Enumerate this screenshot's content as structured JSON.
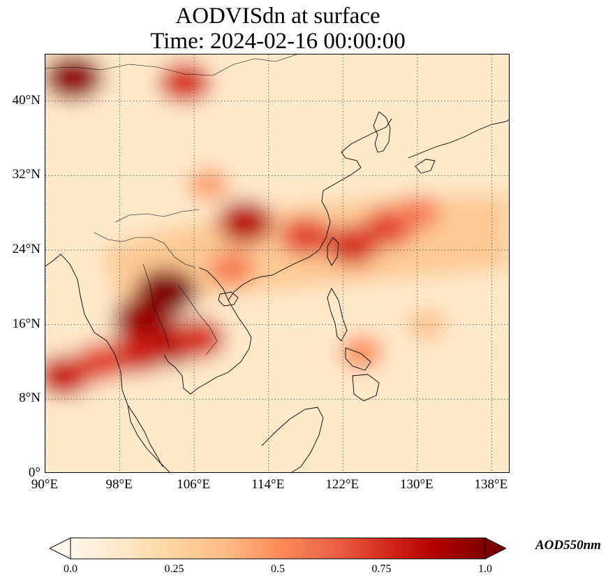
{
  "title": {
    "line1": "AODVISdn at surface",
    "line2": "Time: 2024-02-16 00:00:00"
  },
  "map": {
    "projection": "PlateCarree",
    "extent": {
      "lon_min": 90,
      "lon_max": 140,
      "lat_min": 0,
      "lat_max": 45
    },
    "gridlines": "dotted",
    "coastlines": true,
    "borders": true,
    "lat_ticks": [
      {
        "value": 0,
        "label": "0°"
      },
      {
        "value": 8,
        "label": "8°N"
      },
      {
        "value": 16,
        "label": "16°N"
      },
      {
        "value": 24,
        "label": "24°N"
      },
      {
        "value": 32,
        "label": "32°N"
      },
      {
        "value": 40,
        "label": "40°N"
      }
    ],
    "lon_ticks": [
      {
        "value": 90,
        "label": "90°E"
      },
      {
        "value": 98,
        "label": "98°E"
      },
      {
        "value": 106,
        "label": "106°E"
      },
      {
        "value": 114,
        "label": "114°E"
      },
      {
        "value": 122,
        "label": "122°E"
      },
      {
        "value": 130,
        "label": "130°E"
      },
      {
        "value": 138,
        "label": "138°E"
      }
    ],
    "field_hotspots": [
      {
        "lon": 103.0,
        "lat": 19.5,
        "value": 1.0
      },
      {
        "lon": 100.5,
        "lat": 16.5,
        "value": 0.95
      },
      {
        "lon": 103.5,
        "lat": 14.0,
        "value": 0.9
      },
      {
        "lon": 100.0,
        "lat": 13.0,
        "value": 0.8
      },
      {
        "lon": 92.0,
        "lat": 10.5,
        "value": 0.8
      },
      {
        "lon": 96.0,
        "lat": 12.0,
        "value": 0.7
      },
      {
        "lon": 106.5,
        "lat": 14.5,
        "value": 0.75
      },
      {
        "lon": 111.5,
        "lat": 27.0,
        "value": 0.85
      },
      {
        "lon": 118.0,
        "lat": 25.5,
        "value": 0.7
      },
      {
        "lon": 123.0,
        "lat": 24.5,
        "value": 0.75
      },
      {
        "lon": 127.0,
        "lat": 26.5,
        "value": 0.7
      },
      {
        "lon": 130.0,
        "lat": 28.0,
        "value": 0.55
      },
      {
        "lon": 93.0,
        "lat": 42.5,
        "value": 0.95
      },
      {
        "lon": 105.0,
        "lat": 42.0,
        "value": 0.75
      },
      {
        "lon": 107.5,
        "lat": 31.0,
        "value": 0.45
      },
      {
        "lon": 124.0,
        "lat": 13.0,
        "value": 0.5
      },
      {
        "lon": 131.0,
        "lat": 16.0,
        "value": 0.35
      },
      {
        "lon": 110.0,
        "lat": 22.0,
        "value": 0.55
      }
    ]
  },
  "colorbar": {
    "label": "AOD550nm",
    "colormap": "OrRd",
    "extend": "both",
    "vmin": 0.0,
    "vmax": 1.0,
    "ticks": [
      {
        "value": 0.0,
        "label": "0.0"
      },
      {
        "value": 0.25,
        "label": "0.25"
      },
      {
        "value": 0.5,
        "label": "0.5"
      },
      {
        "value": 0.75,
        "label": "0.75"
      },
      {
        "value": 1.0,
        "label": "1.0"
      }
    ],
    "stops": [
      "#fff7ec",
      "#fee8c8",
      "#fdd49e",
      "#fdbb84",
      "#fc8d59",
      "#ef6548",
      "#d7301f",
      "#b30000",
      "#7f0000"
    ]
  }
}
